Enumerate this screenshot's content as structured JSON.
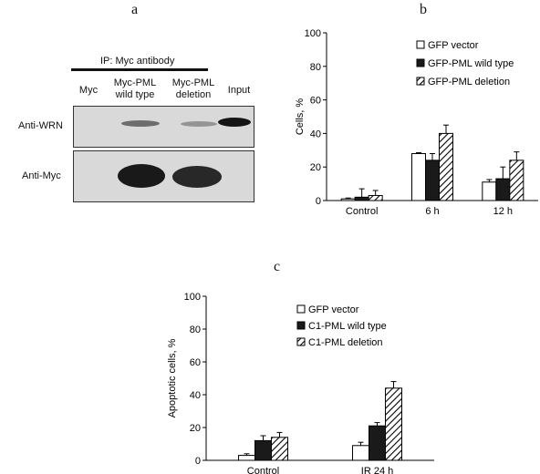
{
  "panels": {
    "a": "a",
    "b": "b",
    "c": "c"
  },
  "blot": {
    "ip_label": "IP: Myc antibody",
    "lanes": [
      "Myc",
      "Myc-PML\nwild type",
      "Myc-PML\ndeletion",
      "Input"
    ],
    "rows": [
      "Anti-WRN",
      "Anti-Myc"
    ],
    "bands": {
      "anti_wrn": [
        0,
        0.55,
        0.35,
        1.0
      ],
      "anti_myc": [
        0,
        1.0,
        0.9,
        0
      ]
    }
  },
  "colors": {
    "bar_outline": "#000000",
    "fill_white": "#ffffff",
    "fill_black": "#1a1a1a",
    "blot_bg": "#d8d8d8",
    "band": "#111111"
  },
  "chart_data": [
    {
      "type": "bar",
      "panel": "b",
      "categories": [
        "Control",
        "6 h",
        "12 h"
      ],
      "ylabel": "Cells, %",
      "ylim": [
        0,
        100
      ],
      "yticks": [
        0,
        20,
        40,
        60,
        80,
        100
      ],
      "legend_position": "top-right",
      "series": [
        {
          "name": "GFP vector",
          "fill": "white",
          "values": [
            1,
            28,
            11
          ],
          "errors": [
            0.5,
            0.5,
            1.5
          ]
        },
        {
          "name": "GFP-PML wild type",
          "fill": "black",
          "values": [
            2,
            24,
            13
          ],
          "errors": [
            5,
            4,
            7
          ]
        },
        {
          "name": "GFP-PML deletion",
          "fill": "hatch",
          "values": [
            3,
            40,
            24
          ],
          "errors": [
            3,
            5,
            5
          ]
        }
      ]
    },
    {
      "type": "bar",
      "panel": "c",
      "categories": [
        "Control",
        "IR 24 h"
      ],
      "ylabel": "Apoptotic cells, %",
      "ylim": [
        0,
        100
      ],
      "yticks": [
        0,
        20,
        40,
        60,
        80,
        100
      ],
      "legend_position": "top-right",
      "series": [
        {
          "name": "GFP vector",
          "fill": "white",
          "values": [
            3,
            9
          ],
          "errors": [
            1,
            2
          ]
        },
        {
          "name": "C1-PML wild type",
          "fill": "black",
          "values": [
            12,
            21
          ],
          "errors": [
            3,
            2
          ]
        },
        {
          "name": "C1-PML deletion",
          "fill": "hatch",
          "values": [
            14,
            44
          ],
          "errors": [
            3,
            4
          ]
        }
      ]
    }
  ]
}
